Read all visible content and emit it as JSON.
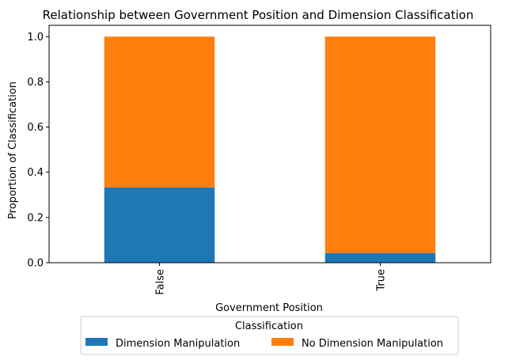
{
  "chart_data": {
    "type": "bar",
    "stacked": true,
    "title": "Relationship between Government Position and Dimension Classification",
    "xlabel": "Government Position",
    "ylabel": "Proportion of Classification",
    "categories": [
      "False",
      "True"
    ],
    "series": [
      {
        "name": "Dimension Manipulation",
        "color": "#1f77b4",
        "values": [
          0.333,
          0.043
        ]
      },
      {
        "name": "No Dimension Manipulation",
        "color": "#ff7f0e",
        "values": [
          0.667,
          0.957
        ]
      }
    ],
    "ylim": [
      0,
      1.05
    ],
    "yticks": [
      "0.0",
      "0.2",
      "0.4",
      "0.6",
      "0.8",
      "1.0"
    ],
    "grid": false,
    "legend": {
      "title": "Classification",
      "placement": "bottom-center"
    }
  }
}
